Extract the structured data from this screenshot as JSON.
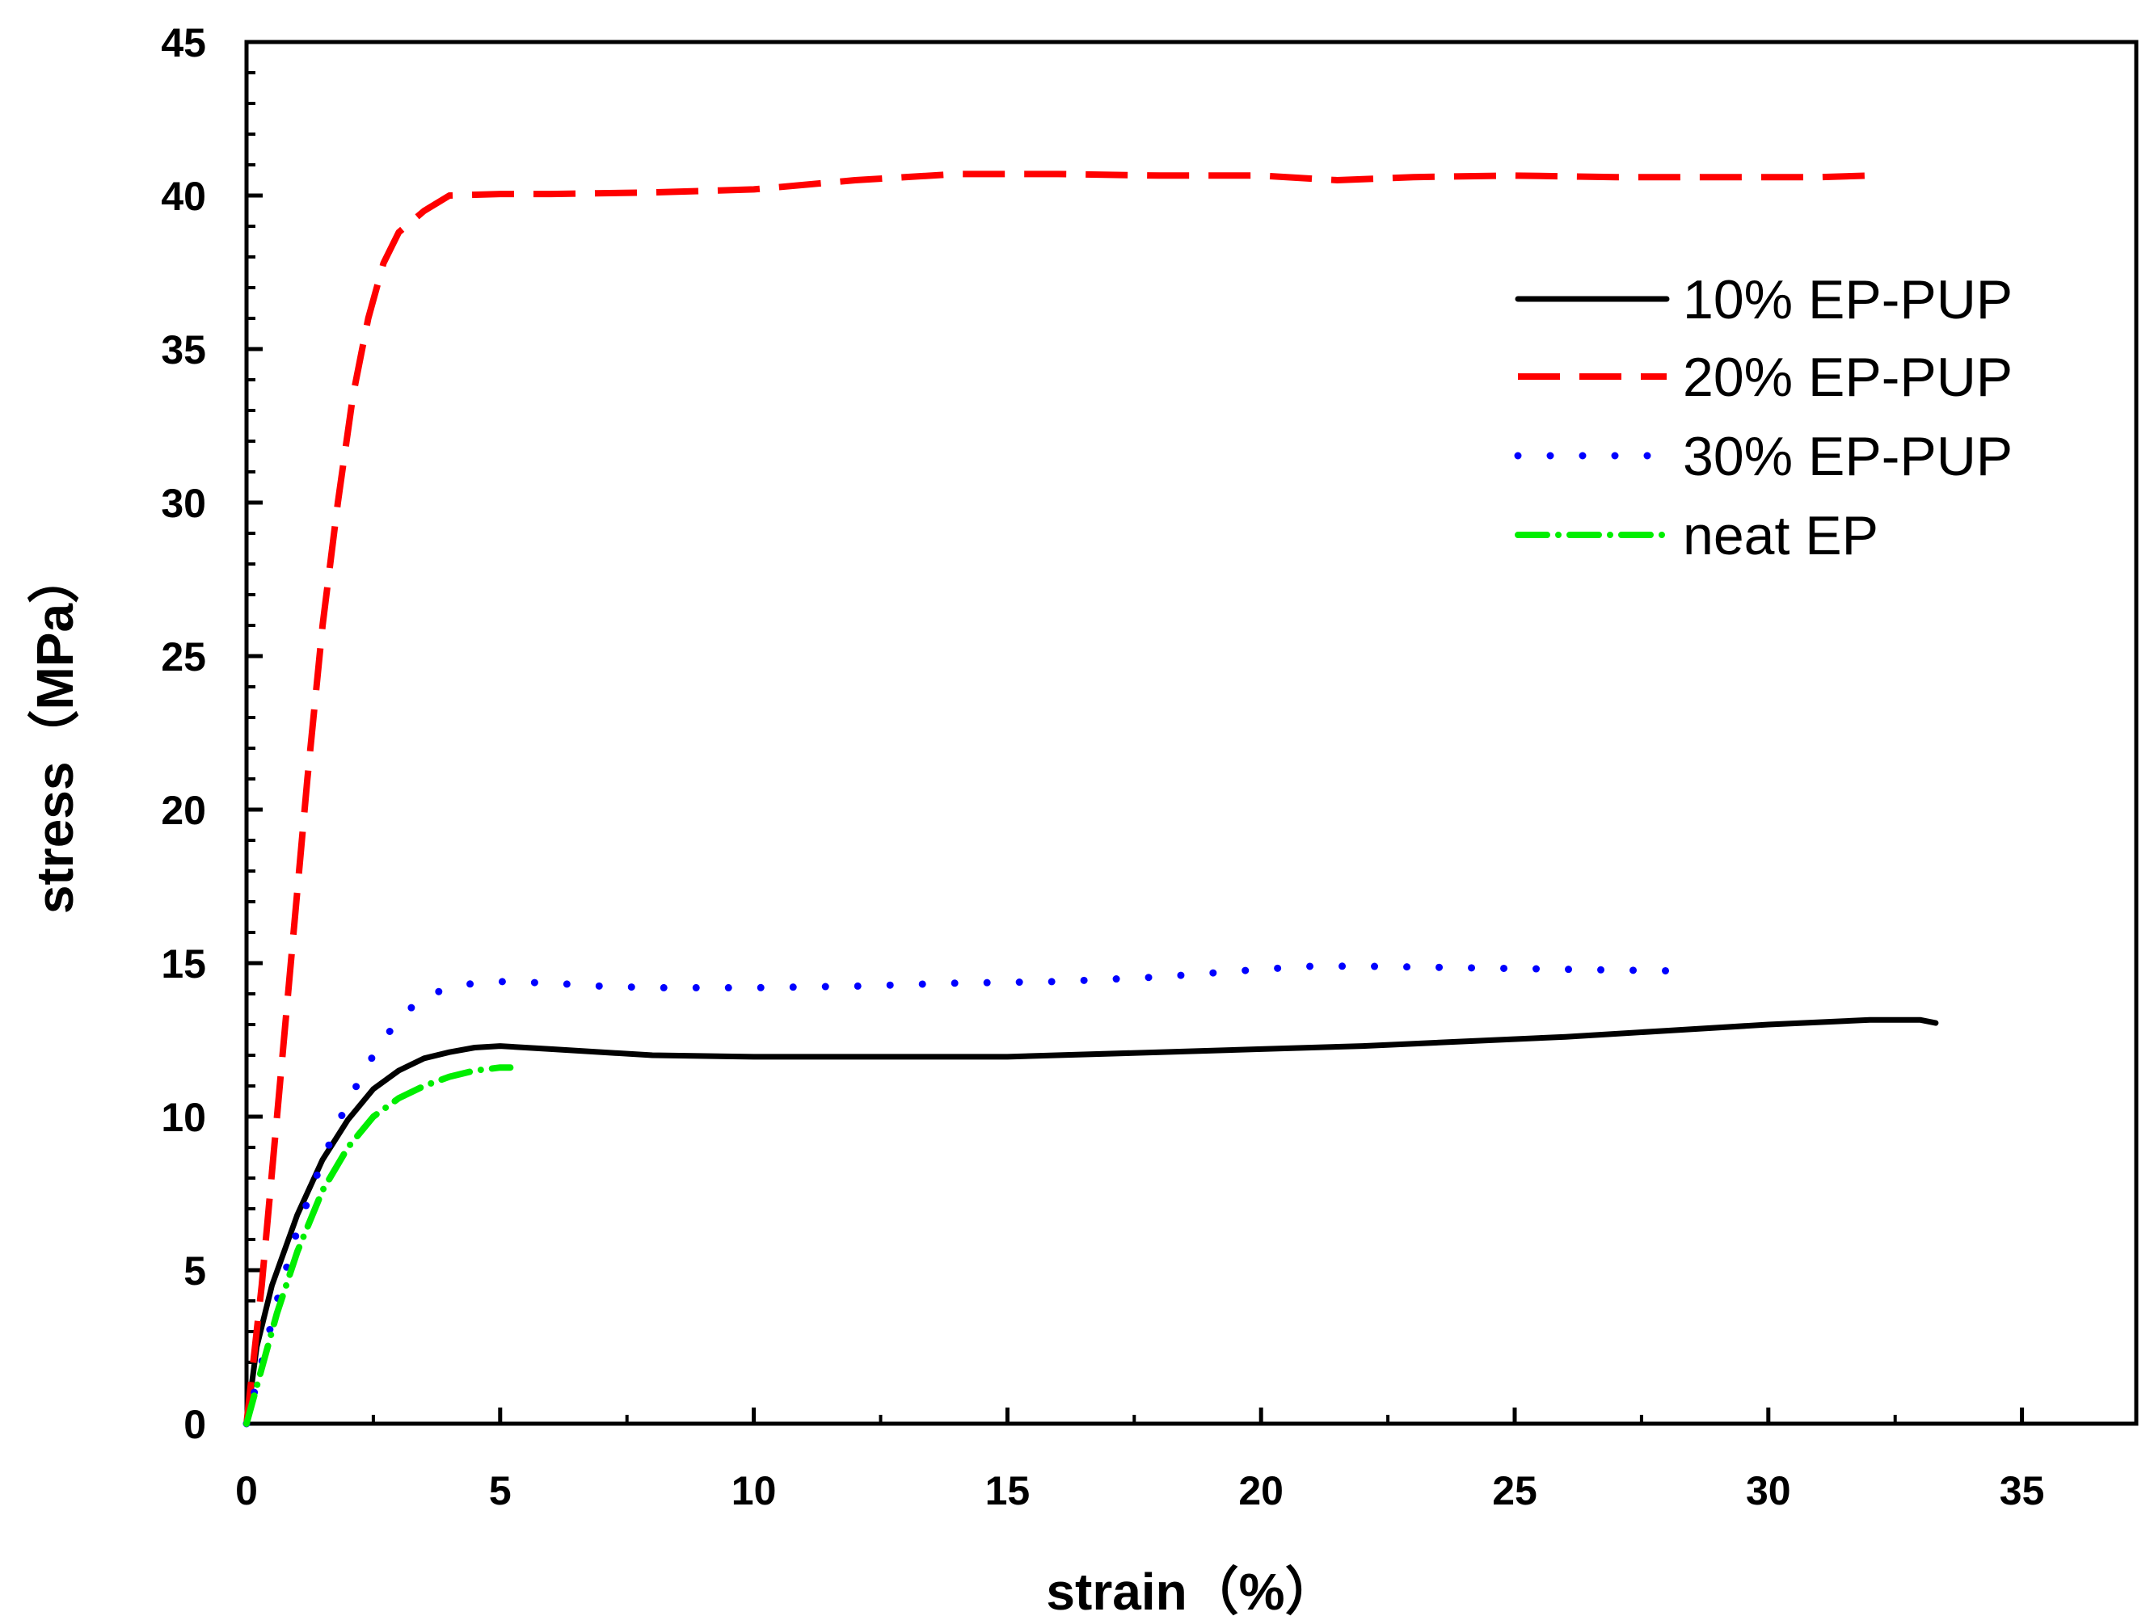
{
  "chart_data": {
    "type": "line",
    "title": "",
    "xlabel": "strain（%）",
    "ylabel": "stress（MPa）",
    "xlim": [
      0,
      37.5
    ],
    "ylim": [
      0,
      45
    ],
    "xticks": [
      0,
      5,
      10,
      15,
      20,
      25,
      30,
      35
    ],
    "yticks": [
      0,
      5,
      10,
      15,
      20,
      25,
      30,
      35,
      40,
      45
    ],
    "grid": false,
    "legend_position": "top-right",
    "series": [
      {
        "name": "10% EP-PUP",
        "color": "#000000",
        "style": "solid",
        "x": [
          0,
          0.2,
          0.5,
          1.0,
          1.5,
          2.0,
          2.5,
          3.0,
          3.5,
          4.0,
          4.5,
          5.0,
          6.0,
          8.0,
          10.0,
          12.0,
          15.0,
          18.0,
          20.0,
          22.0,
          24.0,
          26.0,
          28.0,
          30.0,
          32.0,
          33.0,
          33.3
        ],
        "y": [
          0,
          2.5,
          4.5,
          6.8,
          8.6,
          9.9,
          10.9,
          11.5,
          11.9,
          12.1,
          12.25,
          12.3,
          12.2,
          12.0,
          11.95,
          11.95,
          11.95,
          12.1,
          12.2,
          12.3,
          12.45,
          12.6,
          12.8,
          13.0,
          13.15,
          13.15,
          13.05
        ]
      },
      {
        "name": "20% EP-PUP",
        "color": "#ff0000",
        "style": "dashed",
        "x": [
          0,
          0.3,
          0.6,
          0.9,
          1.2,
          1.5,
          1.8,
          2.1,
          2.4,
          2.7,
          3.0,
          3.5,
          4.0,
          5.0,
          6.0,
          8.0,
          10.0,
          12.0,
          14.0,
          16.0,
          18.0,
          20.0,
          21.5,
          23.0,
          25.0,
          27.0,
          29.0,
          31.0,
          32.0
        ],
        "y": [
          0,
          4.5,
          10.0,
          15.5,
          21.0,
          26.0,
          30.0,
          33.5,
          36.0,
          37.8,
          38.8,
          39.5,
          40.0,
          40.05,
          40.05,
          40.1,
          40.2,
          40.5,
          40.7,
          40.7,
          40.65,
          40.65,
          40.5,
          40.6,
          40.65,
          40.6,
          40.6,
          40.6,
          40.65
        ]
      },
      {
        "name": "30% EP-PUP",
        "color": "#0000ff",
        "style": "dotted",
        "x": [
          0,
          0.3,
          0.6,
          1.0,
          1.5,
          2.0,
          2.5,
          3.0,
          3.5,
          4.0,
          4.5,
          5.0,
          6.0,
          7.0,
          8.0,
          9.0,
          10.0,
          12.0,
          14.0,
          16.0,
          18.0,
          20.0,
          21.0,
          22.0,
          24.0,
          26.0,
          28.0,
          28.6
        ],
        "y": [
          0,
          2.0,
          4.0,
          6.3,
          8.6,
          10.5,
          12.0,
          13.2,
          13.9,
          14.2,
          14.35,
          14.4,
          14.35,
          14.25,
          14.2,
          14.2,
          14.2,
          14.25,
          14.35,
          14.4,
          14.55,
          14.8,
          14.9,
          14.9,
          14.85,
          14.8,
          14.75,
          14.7
        ]
      },
      {
        "name": "neat EP",
        "color": "#00ee00",
        "style": "dashdot",
        "x": [
          0,
          0.3,
          0.6,
          1.0,
          1.5,
          2.0,
          2.5,
          3.0,
          3.5,
          4.0,
          4.5,
          5.0,
          5.2
        ],
        "y": [
          0,
          1.8,
          3.6,
          5.6,
          7.6,
          9.0,
          10.0,
          10.6,
          11.0,
          11.3,
          11.5,
          11.6,
          11.6
        ]
      }
    ]
  }
}
